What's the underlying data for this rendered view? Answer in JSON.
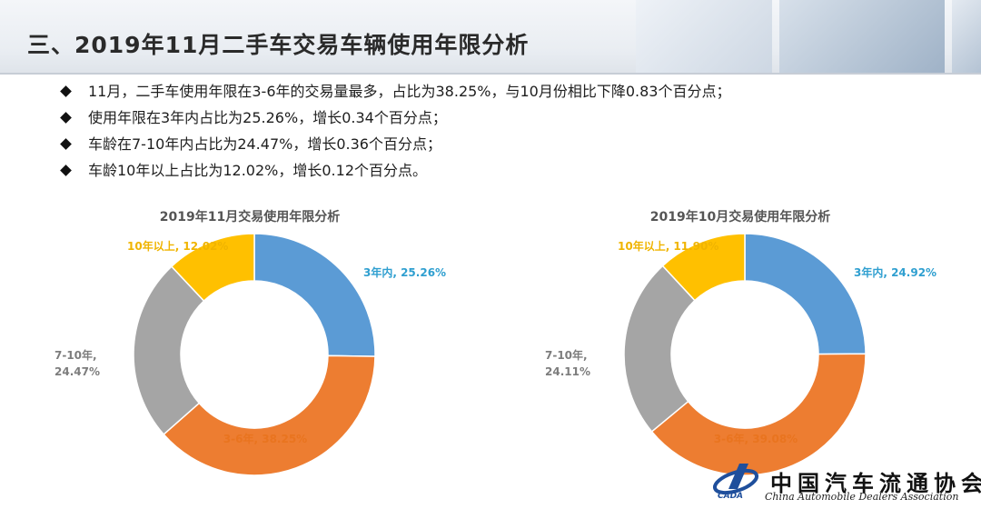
{
  "header": {
    "title": "三、2019年11月二手车交易车辆使用年限分析"
  },
  "bullets": [
    "11月，二手车使用年限在3-6年的交易量最多，占比为38.25%，与10月份相比下降0.83个百分点；",
    "使用年限在3年内占比为25.26%，增长0.34个百分点；",
    "车龄在7-10年内占比为24.47%，增长0.36个百分点；",
    "车龄10年以上占比为12.02%，增长0.12个百分点。"
  ],
  "chart_data": [
    {
      "type": "pie",
      "title": "2019年11月交易使用年限分析",
      "categories": [
        "3年内",
        "3-6年",
        "7-10年",
        "10年以上"
      ],
      "values": [
        25.26,
        38.25,
        24.47,
        12.02
      ],
      "labels": [
        "3年内, 25.26%",
        "3-6年, 38.25%",
        "7-10年, 24.47%",
        "10年以上, 12.02%"
      ],
      "donut": true
    },
    {
      "type": "pie",
      "title": "2019年10月交易使用年限分析",
      "categories": [
        "3年内",
        "3-6年",
        "7-10年",
        "10年以上"
      ],
      "values": [
        24.92,
        39.08,
        24.11,
        11.9
      ],
      "labels": [
        "3年内, 24.92%",
        "3-6年, 39.08%",
        "7-10年, 24.11%",
        "10年以上, 11.90%"
      ],
      "donut": true
    }
  ],
  "colors": {
    "segments": [
      "#5b9bd5",
      "#ed7d31",
      "#a5a5a5",
      "#ffc000"
    ],
    "label_colors": [
      "#2f9fd0",
      "#e9741f",
      "#7d7d7d",
      "#f0b400"
    ],
    "chart_title": "#555555"
  },
  "logo": {
    "cn": "中国汽车流通协会",
    "en": "China Automobile Dealers Association",
    "mark": "CADA"
  }
}
